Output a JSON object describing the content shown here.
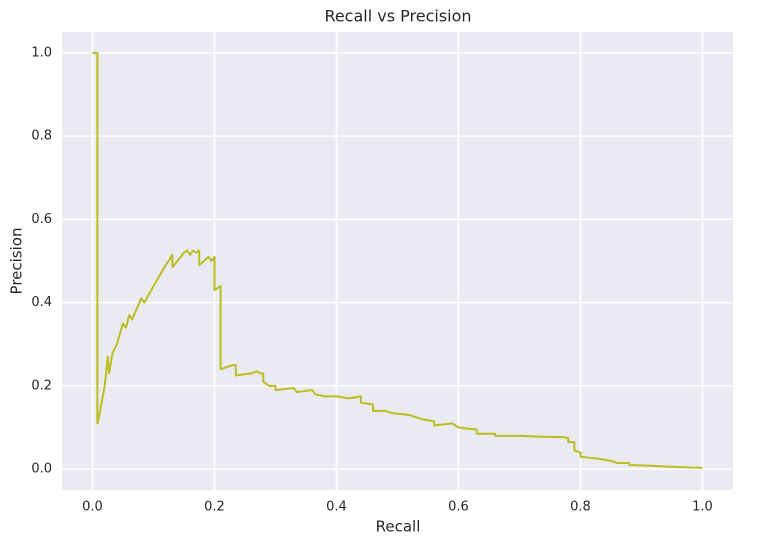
{
  "chart_data": {
    "type": "line",
    "title": "Recall vs Precision",
    "xlabel": "Recall",
    "ylabel": "Precision",
    "color": "#bcbd22",
    "grid": true,
    "xlim": [
      -0.05,
      1.05
    ],
    "ylim": [
      -0.05,
      1.05
    ],
    "xticks": [
      {
        "value": 0,
        "label": "0.0"
      },
      {
        "value": 0.2,
        "label": "0.2"
      },
      {
        "value": 0.4,
        "label": "0.4"
      },
      {
        "value": 0.6,
        "label": "0.6"
      },
      {
        "value": 0.8,
        "label": "0.8"
      },
      {
        "value": 1,
        "label": "1.0"
      }
    ],
    "yticks": [
      {
        "value": 0,
        "label": "0.0"
      },
      {
        "value": 0.2,
        "label": "0.2"
      },
      {
        "value": 0.4,
        "label": "0.4"
      },
      {
        "value": 0.6,
        "label": "0.6"
      },
      {
        "value": 0.8,
        "label": "0.8"
      },
      {
        "value": 1,
        "label": "1.0"
      }
    ],
    "x": [
      0,
      0.008,
      0.008,
      0.01,
      0.02,
      0.025,
      0.027,
      0.033,
      0.04,
      0.05,
      0.055,
      0.06,
      0.065,
      0.08,
      0.085,
      0.1,
      0.12,
      0.131,
      0.131,
      0.15,
      0.155,
      0.16,
      0.165,
      0.17,
      0.175,
      0.175,
      0.19,
      0.195,
      0.2,
      0.2,
      0.21,
      0.21,
      0.23,
      0.235,
      0.235,
      0.26,
      0.27,
      0.275,
      0.28,
      0.28,
      0.29,
      0.3,
      0.3,
      0.33,
      0.335,
      0.36,
      0.365,
      0.38,
      0.4,
      0.42,
      0.44,
      0.44,
      0.46,
      0.46,
      0.48,
      0.49,
      0.52,
      0.54,
      0.56,
      0.56,
      0.59,
      0.6,
      0.63,
      0.63,
      0.66,
      0.66,
      0.7,
      0.74,
      0.77,
      0.78,
      0.78,
      0.79,
      0.79,
      0.8,
      0.8,
      0.83,
      0.85,
      0.86,
      0.88,
      0.88,
      0.92,
      0.96,
      1.0
    ],
    "values": [
      1.0,
      1.0,
      0.11,
      0.12,
      0.2,
      0.27,
      0.23,
      0.28,
      0.3,
      0.35,
      0.34,
      0.37,
      0.36,
      0.41,
      0.4,
      0.44,
      0.49,
      0.515,
      0.485,
      0.52,
      0.525,
      0.515,
      0.525,
      0.52,
      0.525,
      0.49,
      0.51,
      0.5,
      0.51,
      0.43,
      0.44,
      0.24,
      0.25,
      0.25,
      0.225,
      0.23,
      0.235,
      0.23,
      0.23,
      0.21,
      0.2,
      0.2,
      0.19,
      0.195,
      0.185,
      0.19,
      0.18,
      0.175,
      0.175,
      0.17,
      0.175,
      0.16,
      0.155,
      0.14,
      0.14,
      0.135,
      0.13,
      0.12,
      0.115,
      0.105,
      0.11,
      0.1,
      0.095,
      0.085,
      0.085,
      0.08,
      0.08,
      0.078,
      0.077,
      0.075,
      0.065,
      0.065,
      0.045,
      0.04,
      0.03,
      0.025,
      0.02,
      0.015,
      0.015,
      0.01,
      0.008,
      0.005,
      0.003
    ]
  }
}
